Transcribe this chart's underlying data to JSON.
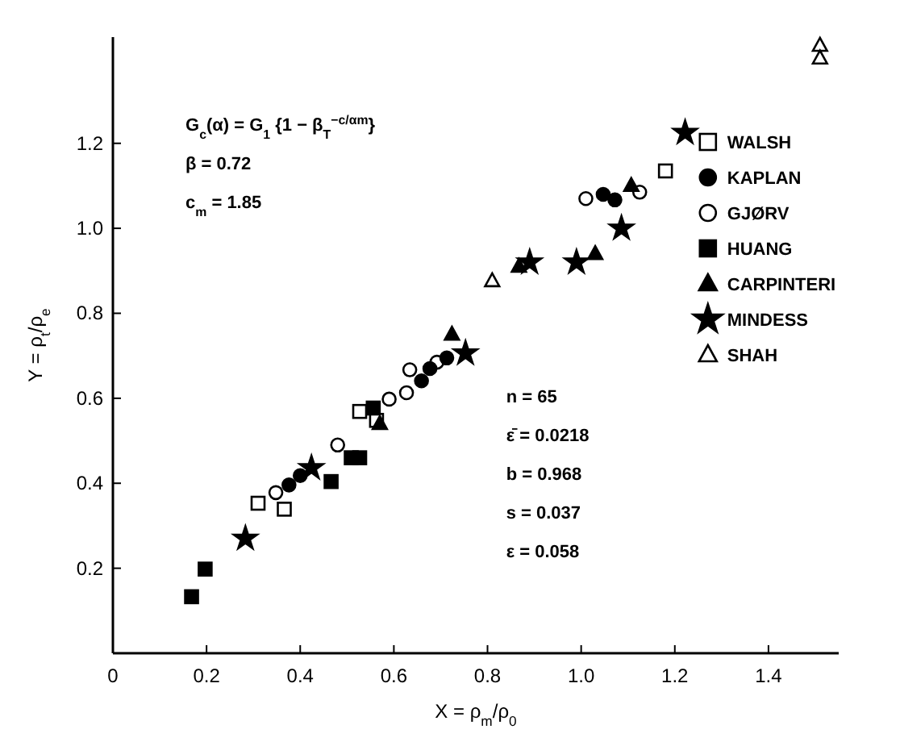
{
  "chart_data": {
    "type": "scatter",
    "xlabel": "X = ρ$_{m}$/ρ$_{0}$",
    "ylabel": "Y = ρ$_{t}$/ρ$_{e}$",
    "xlim": [
      0,
      1.55
    ],
    "ylim": [
      0,
      1.45
    ],
    "xticks": [
      0,
      {
        "value": 0.2,
        "label": "0.2"
      },
      {
        "value": 0.4,
        "label": "0.4"
      },
      {
        "value": 0.6,
        "label": "0.6"
      },
      {
        "value": 0.8,
        "label": "0.8"
      },
      {
        "value": 1,
        "label": "1.0"
      },
      {
        "value": 1.2,
        "label": "1.2"
      },
      {
        "value": 1.4,
        "label": "1.4"
      }
    ],
    "yticks": [
      {
        "value": 0.2,
        "label": "0.2"
      },
      {
        "value": 0.4,
        "label": "0.4"
      },
      {
        "value": 0.6,
        "label": "0.6"
      },
      {
        "value": 0.8,
        "label": "0.8"
      },
      {
        "value": 1,
        "label": "1.0"
      },
      {
        "value": 1.2,
        "label": "1.2"
      }
    ],
    "grid": false,
    "legend": "top right",
    "series": [
      {
        "name": "WALSH",
        "color": "#000000",
        "marker": "square-open",
        "x": [
          0.31,
          0.366,
          0.527,
          0.563,
          1.18
        ],
        "values": [
          0.353,
          0.339,
          0.569,
          0.548,
          1.135
        ]
      },
      {
        "name": "KAPLAN",
        "color": "#000000",
        "marker": "circle",
        "x": [
          0.376,
          0.4,
          0.659,
          0.677,
          0.713,
          1.047,
          1.072
        ],
        "values": [
          0.396,
          0.418,
          0.641,
          0.67,
          0.695,
          1.08,
          1.067
        ]
      },
      {
        "name": "GJØRV",
        "color": "#000000",
        "marker": "circle-open",
        "x": [
          0.348,
          0.48,
          0.59,
          0.627,
          0.634,
          0.692,
          1.01,
          1.125
        ],
        "values": [
          0.378,
          0.49,
          0.598,
          0.613,
          0.667,
          0.685,
          1.07,
          1.085
        ]
      },
      {
        "name": "HUANG",
        "color": "#000000",
        "marker": "square",
        "x": [
          0.168,
          0.197,
          0.466,
          0.509,
          0.527,
          0.556
        ],
        "values": [
          0.133,
          0.198,
          0.404,
          0.46,
          0.46,
          0.577
        ]
      },
      {
        "name": "CARPINTERI",
        "color": "#000000",
        "marker": "triangle",
        "x": [
          0.57,
          0.724,
          0.867,
          1.03,
          1.107
        ],
        "values": [
          0.54,
          0.75,
          0.91,
          0.94,
          1.1
        ]
      },
      {
        "name": "MINDESS",
        "color": "#000000",
        "marker": "star",
        "x": [
          0.283,
          0.424,
          0.753,
          0.89,
          0.99,
          1.086,
          1.222
        ],
        "values": [
          0.27,
          0.436,
          0.706,
          0.92,
          0.92,
          1.0,
          1.225
        ]
      },
      {
        "name": "SHAH",
        "color": "#000000",
        "marker": "triangle-open",
        "x": [
          0.81,
          1.51,
          1.51
        ],
        "values": [
          0.876,
          1.43,
          1.4
        ]
      }
    ],
    "annotations": [
      "G$_{c}$(α) = G$_{1}$ {1 − β$_{T}$$^{−c/αm}$}",
      "β = 0.72",
      "c$_{m}$ = 1.85",
      "n = 65",
      "ε̄ = 0.0218",
      "b = 0.968",
      "s = 0.037",
      "ε = 0.058"
    ]
  }
}
